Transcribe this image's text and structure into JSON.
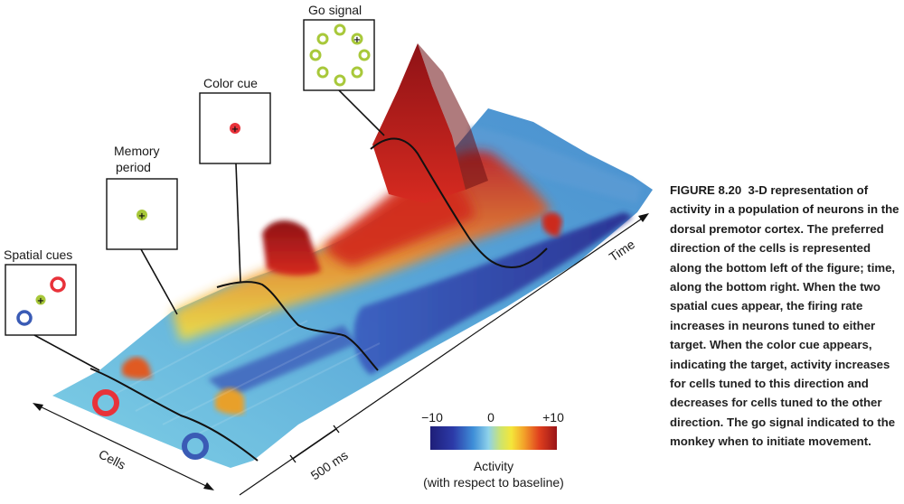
{
  "figure": {
    "caption_label": "FIGURE 8.20",
    "caption_title": "3-D representation of activity in a population of neurons in the dorsal premotor cortex.",
    "caption_body": "The preferred direction of the cells is represented along the bottom left of the figure; time, along the bottom right. When the two spatial cues appear, the firing rate increases in neurons tuned to either target. When the color cue appears, indicating the target, activity increases for cells tuned to this direction and decreases for cells tuned to the other direction. The go signal indicated to the monkey when to initiate movement."
  },
  "panels": {
    "spatial_cues": "Spatial cues",
    "memory_period_line1": "Memory",
    "memory_period_line2": "period",
    "color_cue": "Color cue",
    "go_signal": "Go signal"
  },
  "axes": {
    "cells": "Cells",
    "time": "Time",
    "scale_bar": "500 ms"
  },
  "colorbar": {
    "min_label": "−10",
    "mid_label": "0",
    "max_label": "+10",
    "title": "Activity",
    "subtitle": "(with respect to baseline)",
    "min": -10,
    "max": 10
  },
  "colors": {
    "red_target": "#e8323a",
    "blue_target": "#3a5bb5",
    "green_fixation": "#a8c83a"
  }
}
